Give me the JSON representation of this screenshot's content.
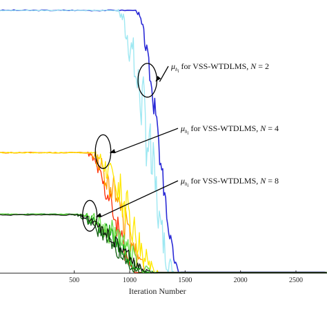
{
  "chart_data": {
    "type": "line",
    "title": "",
    "xlabel": "Iteration Number",
    "ylabel": "",
    "xlim": [
      -170,
      2780
    ],
    "ylim": [
      0,
      1.11
    ],
    "x_ticks": [
      500,
      1000,
      1500,
      2000,
      2500
    ],
    "x_tick_labels": [
      "500",
      "1000",
      "1500",
      "2000",
      "2500"
    ],
    "grid": false,
    "legend": "none",
    "annotations": [
      {
        "id": "n2",
        "symbol": "μ",
        "sub": "h",
        "subsub": "i",
        "text": " for VSS-WTDLMS, ",
        "var": "N",
        "eq": " = 2",
        "target": [
          1160,
          0.8
        ],
        "ellipse_rx": 85,
        "ellipse_ry": 0.07
      },
      {
        "id": "n4",
        "symbol": "μ",
        "sub": "h",
        "subsub": "i",
        "text": " for VSS-WTDLMS, ",
        "var": "N",
        "eq": " = 4",
        "target": [
          760,
          0.504
        ],
        "ellipse_rx": 70,
        "ellipse_ry": 0.07
      },
      {
        "id": "n8",
        "symbol": "μ",
        "sub": "h",
        "subsub": "i",
        "text": " for VSS-WTDLMS, ",
        "var": "N",
        "eq": " = 8",
        "target": [
          640,
          0.238
        ],
        "ellipse_rx": 65,
        "ellipse_ry": 0.064
      }
    ],
    "series": [
      {
        "color": "#2a2ad6",
        "width": 1.6,
        "start": 1.09,
        "drop": [
          1050,
          1200,
          1330,
          1460
        ],
        "noise": 0.05,
        "seed": 3
      },
      {
        "color": "#9ee8f2",
        "width": 1.4,
        "start": 1.09,
        "drop": [
          880,
          1080,
          1260,
          1420
        ],
        "noise": 0.14,
        "seed": 7
      },
      {
        "color": "#ff2a00",
        "width": 1.3,
        "start": 0.5,
        "drop": [
          600,
          790,
          950,
          1080
        ],
        "noise": 0.05,
        "seed": 11
      },
      {
        "color": "#ff9a00",
        "width": 1.3,
        "start": 0.5,
        "drop": [
          620,
          830,
          1050,
          1200
        ],
        "noise": 0.07,
        "seed": 13
      },
      {
        "color": "#ffe800",
        "width": 1.3,
        "start": 0.5,
        "drop": [
          650,
          880,
          1120,
          1280
        ],
        "noise": 0.08,
        "seed": 17
      },
      {
        "color": "#0a5a0a",
        "width": 1.3,
        "start": 0.244,
        "drop": [
          480,
          720,
          950,
          1150
        ],
        "noise": 0.03,
        "seed": 19
      },
      {
        "color": "#139b13",
        "width": 1.3,
        "start": 0.244,
        "drop": [
          520,
          770,
          1000,
          1200
        ],
        "noise": 0.04,
        "seed": 23
      },
      {
        "color": "#66dd44",
        "width": 1.3,
        "start": 0.244,
        "drop": [
          560,
          820,
          1050,
          1250
        ],
        "noise": 0.05,
        "seed": 29
      },
      {
        "color": "#111111",
        "width": 1.2,
        "start": 0.242,
        "drop": [
          500,
          760,
          1000,
          1250
        ],
        "noise": 0.025,
        "seed": 31
      }
    ]
  }
}
